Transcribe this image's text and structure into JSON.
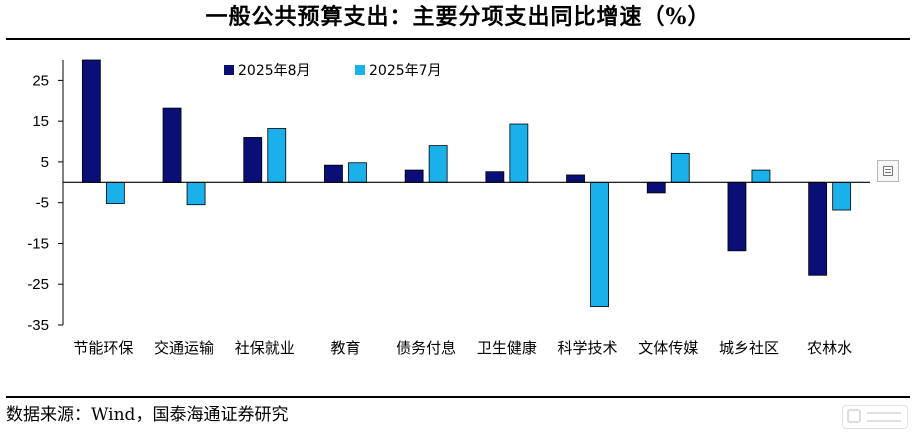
{
  "title": "一般公共预算支出：主要分项支出同比增速（%）",
  "source": "数据来源：Wind，国泰海通证券研究",
  "colors": {
    "series_aug": "#0a0f78",
    "series_jul": "#1ab0ea",
    "axis": "#000000"
  },
  "chart_data": {
    "type": "bar",
    "title": "一般公共预算支出：主要分项支出同比增速（%）",
    "categories": [
      "节能环保",
      "交通运输",
      "社保就业",
      "教育",
      "债务付息",
      "卫生健康",
      "科学技术",
      "文体传媒",
      "城乡社区",
      "农林水"
    ],
    "series": [
      {
        "name": "2025年8月",
        "values": [
          30.0,
          18.2,
          11.0,
          4.2,
          3.0,
          2.6,
          1.8,
          -2.6,
          -16.8,
          -22.8
        ]
      },
      {
        "name": "2025年7月",
        "values": [
          -5.2,
          -5.5,
          13.2,
          4.8,
          9.0,
          14.3,
          -30.5,
          7.1,
          3.0,
          -6.8
        ]
      }
    ],
    "yticks": [
      25,
      15,
      5,
      -5,
      -15,
      -25,
      -35
    ],
    "ylim": [
      -35,
      30
    ],
    "xlabel": "",
    "ylabel": "",
    "legend_position": "top-center",
    "grid": false
  }
}
